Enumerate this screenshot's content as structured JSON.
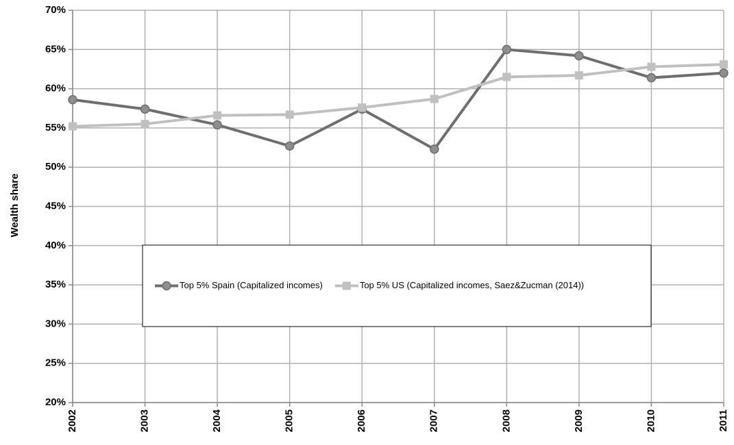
{
  "chart_data": {
    "type": "line",
    "y_label": "Wealth share",
    "x": [
      2002,
      2003,
      2004,
      2005,
      2006,
      2007,
      2008,
      2009,
      2010,
      2011
    ],
    "xlim": [
      2002,
      2011
    ],
    "xticks": [
      2002,
      2003,
      2004,
      2005,
      2006,
      2007,
      2008,
      2009,
      2010,
      2011
    ],
    "ylim": [
      20,
      70
    ],
    "yticks": [
      {
        "value": 20,
        "label": "20%"
      },
      {
        "value": 25,
        "label": "25%"
      },
      {
        "value": 30,
        "label": "30%"
      },
      {
        "value": 35,
        "label": "35%"
      },
      {
        "value": 40,
        "label": "40%"
      },
      {
        "value": 45,
        "label": "45%"
      },
      {
        "value": 50,
        "label": "50%"
      },
      {
        "value": 55,
        "label": "55%"
      },
      {
        "value": 60,
        "label": "60%"
      },
      {
        "value": 65,
        "label": "65%"
      },
      {
        "value": 70,
        "label": "70%"
      }
    ],
    "grid": true,
    "legend": "center",
    "series": [
      {
        "name": "Top 5% Spain (Capitalized incomes)",
        "color": "#6e6e6e",
        "marker": "circle",
        "values": [
          58.6,
          57.4,
          55.4,
          52.7,
          57.4,
          52.3,
          65.0,
          64.2,
          61.4,
          62.0
        ]
      },
      {
        "name": "Top 5% US (Capitalized incomes, Saez&Zucman (2014))",
        "color": "#c0c0c0",
        "marker": "square",
        "values": [
          55.2,
          55.5,
          56.6,
          56.7,
          57.6,
          58.7,
          61.5,
          61.7,
          62.8,
          63.1
        ]
      }
    ]
  }
}
